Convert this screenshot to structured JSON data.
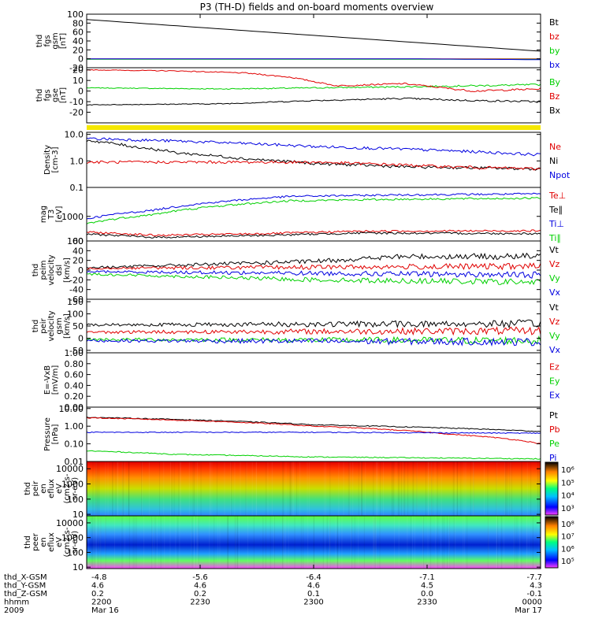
{
  "title": "P3 (TH-D) fields and on-board moments overview",
  "colors": {
    "black": "#000000",
    "red": "#e00000",
    "green": "#00d000",
    "blue": "#0000e0",
    "yellow": "#f5e800"
  },
  "chart_data": [
    {
      "type": "line",
      "ylabel": [
        "thd",
        "fgs",
        "gsm",
        "[nT]"
      ],
      "yticks": [
        "100",
        "80",
        "60",
        "40",
        "20",
        "0",
        "-20"
      ],
      "ylim": [
        -20,
        100
      ],
      "legend": [
        {
          "name": "Bt",
          "color": "black"
        },
        {
          "name": "bz",
          "color": "red"
        },
        {
          "name": "by",
          "color": "green"
        },
        {
          "name": "bx",
          "color": "blue"
        }
      ],
      "series": [
        {
          "name": "Bt",
          "color": "black",
          "x": [
            0,
            1
          ],
          "y": [
            88,
            17
          ]
        },
        {
          "name": "bz",
          "color": "red",
          "x": [
            0,
            1
          ],
          "y": [
            0,
            0
          ]
        },
        {
          "name": "by",
          "color": "green",
          "x": [
            0,
            1
          ],
          "y": [
            -1,
            -1
          ]
        },
        {
          "name": "bx",
          "color": "blue",
          "x": [
            0,
            0.7,
            1
          ],
          "y": [
            0,
            0,
            -2
          ]
        }
      ]
    },
    {
      "type": "line",
      "ylabel": [
        "thd",
        "fgs",
        "gse",
        "[nT]"
      ],
      "yticks": [
        "20",
        "10",
        "0",
        "-10",
        "-20"
      ],
      "ylim": [
        -30,
        22
      ],
      "legend": [
        {
          "name": "By",
          "color": "green"
        },
        {
          "name": "Bz",
          "color": "red"
        },
        {
          "name": "Bx",
          "color": "black"
        }
      ],
      "series": [
        {
          "name": "By",
          "color": "green",
          "x": [
            0,
            0.3,
            0.5,
            0.7,
            1
          ],
          "y": [
            3,
            2,
            3,
            4,
            6
          ]
        },
        {
          "name": "Bz",
          "color": "red",
          "x": [
            0,
            0.2,
            0.35,
            0.45,
            0.55,
            0.7,
            0.85,
            1
          ],
          "y": [
            20,
            19,
            17,
            13,
            5,
            7,
            0,
            2
          ]
        },
        {
          "name": "Bx",
          "color": "black",
          "x": [
            0,
            0.3,
            0.5,
            0.7,
            0.85,
            1
          ],
          "y": [
            -13,
            -12,
            -9,
            -7,
            -9,
            -10
          ]
        }
      ]
    },
    {
      "type": "area",
      "band_color": "yellow"
    },
    {
      "type": "line",
      "ylabel": [
        "Density",
        "[cm-3]"
      ],
      "yscale": "log",
      "yticks": [
        "10.0",
        "1.0",
        "0.1"
      ],
      "ylim": [
        0.1,
        12
      ],
      "legend": [
        {
          "name": "Ne",
          "color": "red"
        },
        {
          "name": "Ni",
          "color": "black"
        },
        {
          "name": "Npot",
          "color": "blue"
        }
      ],
      "series": [
        {
          "name": "Npot",
          "color": "blue",
          "x": [
            0,
            0.5,
            1
          ],
          "y": [
            7,
            3.5,
            1.7
          ]
        },
        {
          "name": "Ni",
          "color": "black",
          "x": [
            0,
            0.1,
            0.2,
            0.35,
            0.5,
            0.7,
            1
          ],
          "y": [
            6,
            3.5,
            2,
            1.2,
            0.8,
            0.6,
            0.5
          ]
        },
        {
          "name": "Ne",
          "color": "red",
          "x": [
            0,
            0.5,
            0.7,
            0.8,
            1
          ],
          "y": [
            0.9,
            0.9,
            0.7,
            0.6,
            0.5
          ]
        }
      ]
    },
    {
      "type": "line",
      "ylabel": [
        "mag",
        "T3",
        "[eV]"
      ],
      "yscale": "log",
      "yticks": [
        "1000",
        "100"
      ],
      "ylim": [
        100,
        15000
      ],
      "legend": [
        {
          "name": "Te⊥",
          "color": "red"
        },
        {
          "name": "Te∥",
          "color": "black"
        },
        {
          "name": "Ti⊥",
          "color": "blue"
        },
        {
          "name": "Ti∥",
          "color": "green"
        }
      ],
      "series": [
        {
          "name": "Ti⊥",
          "color": "blue",
          "x": [
            0,
            0.15,
            0.3,
            0.45,
            0.7,
            1
          ],
          "y": [
            800,
            1800,
            4000,
            6500,
            7500,
            8200
          ]
        },
        {
          "name": "Ti∥",
          "color": "green",
          "x": [
            0,
            0.15,
            0.3,
            0.45,
            0.7,
            1
          ],
          "y": [
            500,
            1200,
            2700,
            4300,
            5000,
            5500
          ]
        },
        {
          "name": "Te⊥",
          "color": "red",
          "x": [
            0,
            0.15,
            0.4,
            0.6,
            1
          ],
          "y": [
            230,
            170,
            200,
            250,
            260
          ]
        },
        {
          "name": "Te∥",
          "color": "black",
          "x": [
            0,
            0.15,
            0.4,
            0.6,
            1
          ],
          "y": [
            190,
            140,
            170,
            210,
            200
          ]
        }
      ]
    },
    {
      "type": "line",
      "ylabel": [
        "thd",
        "peim",
        "velocity",
        "dsl",
        "[km/s]"
      ],
      "yticks": [
        "60",
        "40",
        "20",
        "0",
        "-20",
        "-40",
        "-60"
      ],
      "ylim": [
        -60,
        60
      ],
      "legend": [
        {
          "name": "Vt",
          "color": "black"
        },
        {
          "name": "Vz",
          "color": "red"
        },
        {
          "name": "Vy",
          "color": "green"
        },
        {
          "name": "Vx",
          "color": "blue"
        }
      ],
      "series": [
        {
          "name": "Vt",
          "color": "black",
          "x": [
            0,
            0.5,
            0.7,
            1
          ],
          "y": [
            5,
            18,
            28,
            28
          ]
        },
        {
          "name": "Vz",
          "color": "red",
          "x": [
            0,
            1
          ],
          "y": [
            4,
            8
          ]
        },
        {
          "name": "Vx",
          "color": "blue",
          "x": [
            0,
            1
          ],
          "y": [
            -3,
            -10
          ]
        },
        {
          "name": "Vy",
          "color": "green",
          "x": [
            0,
            0.5,
            1
          ],
          "y": [
            -8,
            -20,
            -25
          ]
        }
      ]
    },
    {
      "type": "line",
      "ylabel": [
        "thd",
        "peir",
        "velocity",
        "gsm",
        "[km/s]"
      ],
      "yticks": [
        "150",
        "100",
        "50",
        "0",
        "-50"
      ],
      "ylim": [
        -60,
        160
      ],
      "legend": [
        {
          "name": "Vt",
          "color": "black"
        },
        {
          "name": "Vz",
          "color": "red"
        },
        {
          "name": "Vy",
          "color": "green"
        },
        {
          "name": "Vx",
          "color": "blue"
        }
      ],
      "series": [
        {
          "name": "Vt",
          "color": "black",
          "x": [
            0,
            1
          ],
          "y": [
            55,
            60
          ]
        },
        {
          "name": "Vz",
          "color": "red",
          "x": [
            0,
            1
          ],
          "y": [
            25,
            30
          ]
        },
        {
          "name": "Vy",
          "color": "green",
          "x": [
            0,
            1
          ],
          "y": [
            -5,
            -10
          ]
        },
        {
          "name": "Vx",
          "color": "blue",
          "x": [
            0,
            1
          ],
          "y": [
            -10,
            -15
          ]
        }
      ]
    },
    {
      "type": "line",
      "ylabel": [
        "E=-VxB",
        "[mV/m]"
      ],
      "yticks": [
        "1.00",
        "0.80",
        "0.60",
        "0.40",
        "0.20",
        "0.00"
      ],
      "ylim": [
        0,
        1
      ],
      "legend": [
        {
          "name": "Ez",
          "color": "red"
        },
        {
          "name": "Ey",
          "color": "green"
        },
        {
          "name": "Ex",
          "color": "blue"
        }
      ],
      "series": []
    },
    {
      "type": "line",
      "ylabel": [
        "Pressure",
        "[nPa]"
      ],
      "yscale": "log",
      "yticks": [
        "10.00",
        "1.00",
        "0.10",
        "0.01"
      ],
      "ylim": [
        0.01,
        12
      ],
      "legend": [
        {
          "name": "Pt",
          "color": "black"
        },
        {
          "name": "Pb",
          "color": "red"
        },
        {
          "name": "Pe",
          "color": "green"
        },
        {
          "name": "Pi",
          "color": "blue"
        }
      ],
      "series": [
        {
          "name": "Pt",
          "color": "black",
          "x": [
            0,
            0.5,
            1
          ],
          "y": [
            3.2,
            1.2,
            0.5
          ]
        },
        {
          "name": "Pb",
          "color": "red",
          "x": [
            0,
            0.5,
            0.8,
            1
          ],
          "y": [
            3,
            1.0,
            0.35,
            0.1
          ]
        },
        {
          "name": "Pi",
          "color": "blue",
          "x": [
            0,
            0.5,
            1
          ],
          "y": [
            0.45,
            0.45,
            0.4
          ]
        },
        {
          "name": "Pe",
          "color": "green",
          "x": [
            0,
            0.2,
            0.5,
            1
          ],
          "y": [
            0.04,
            0.025,
            0.018,
            0.014
          ]
        }
      ]
    },
    {
      "type": "heatmap",
      "ylabel": [
        "thd",
        "peir",
        "en",
        "eflux",
        "eV",
        "(cm2-s-",
        "sr-eV)"
      ],
      "yscale": "log",
      "yticks": [
        "10000",
        "1000",
        "100",
        "10"
      ],
      "ylim": [
        8,
        30000
      ],
      "colorbar": {
        "ticks": [
          "10⁶",
          "10⁵",
          "10⁴",
          "10³"
        ]
      }
    },
    {
      "type": "heatmap",
      "ylabel": [
        "thd",
        "peer",
        "en",
        "eflux",
        "eV",
        "(cm2-s-",
        "sr-eV)"
      ],
      "yscale": "log",
      "yticks": [
        "10000",
        "1000",
        "100",
        "10"
      ],
      "ylim": [
        8,
        30000
      ],
      "colorbar": {
        "ticks": [
          "10⁸",
          "10⁷",
          "10⁶",
          "10⁵"
        ]
      }
    }
  ],
  "x_axis": {
    "row_labels": [
      "thd_X-GSM",
      "thd_Y-GSM",
      "thd_Z-GSM",
      "hhmm",
      "2009"
    ],
    "columns": [
      {
        "values": [
          "-4.8",
          "4.6",
          "0.2",
          "2200",
          "Mar 16"
        ]
      },
      {
        "values": [
          "-5.6",
          "4.6",
          "0.2",
          "2230",
          ""
        ]
      },
      {
        "values": [
          "-6.4",
          "4.6",
          "0.1",
          "2300",
          ""
        ]
      },
      {
        "values": [
          "-7.1",
          "4.5",
          "0.0",
          "2330",
          ""
        ]
      },
      {
        "values": [
          "-7.7",
          "4.3",
          "-0.1",
          "0000",
          "Mar 17"
        ]
      }
    ]
  }
}
